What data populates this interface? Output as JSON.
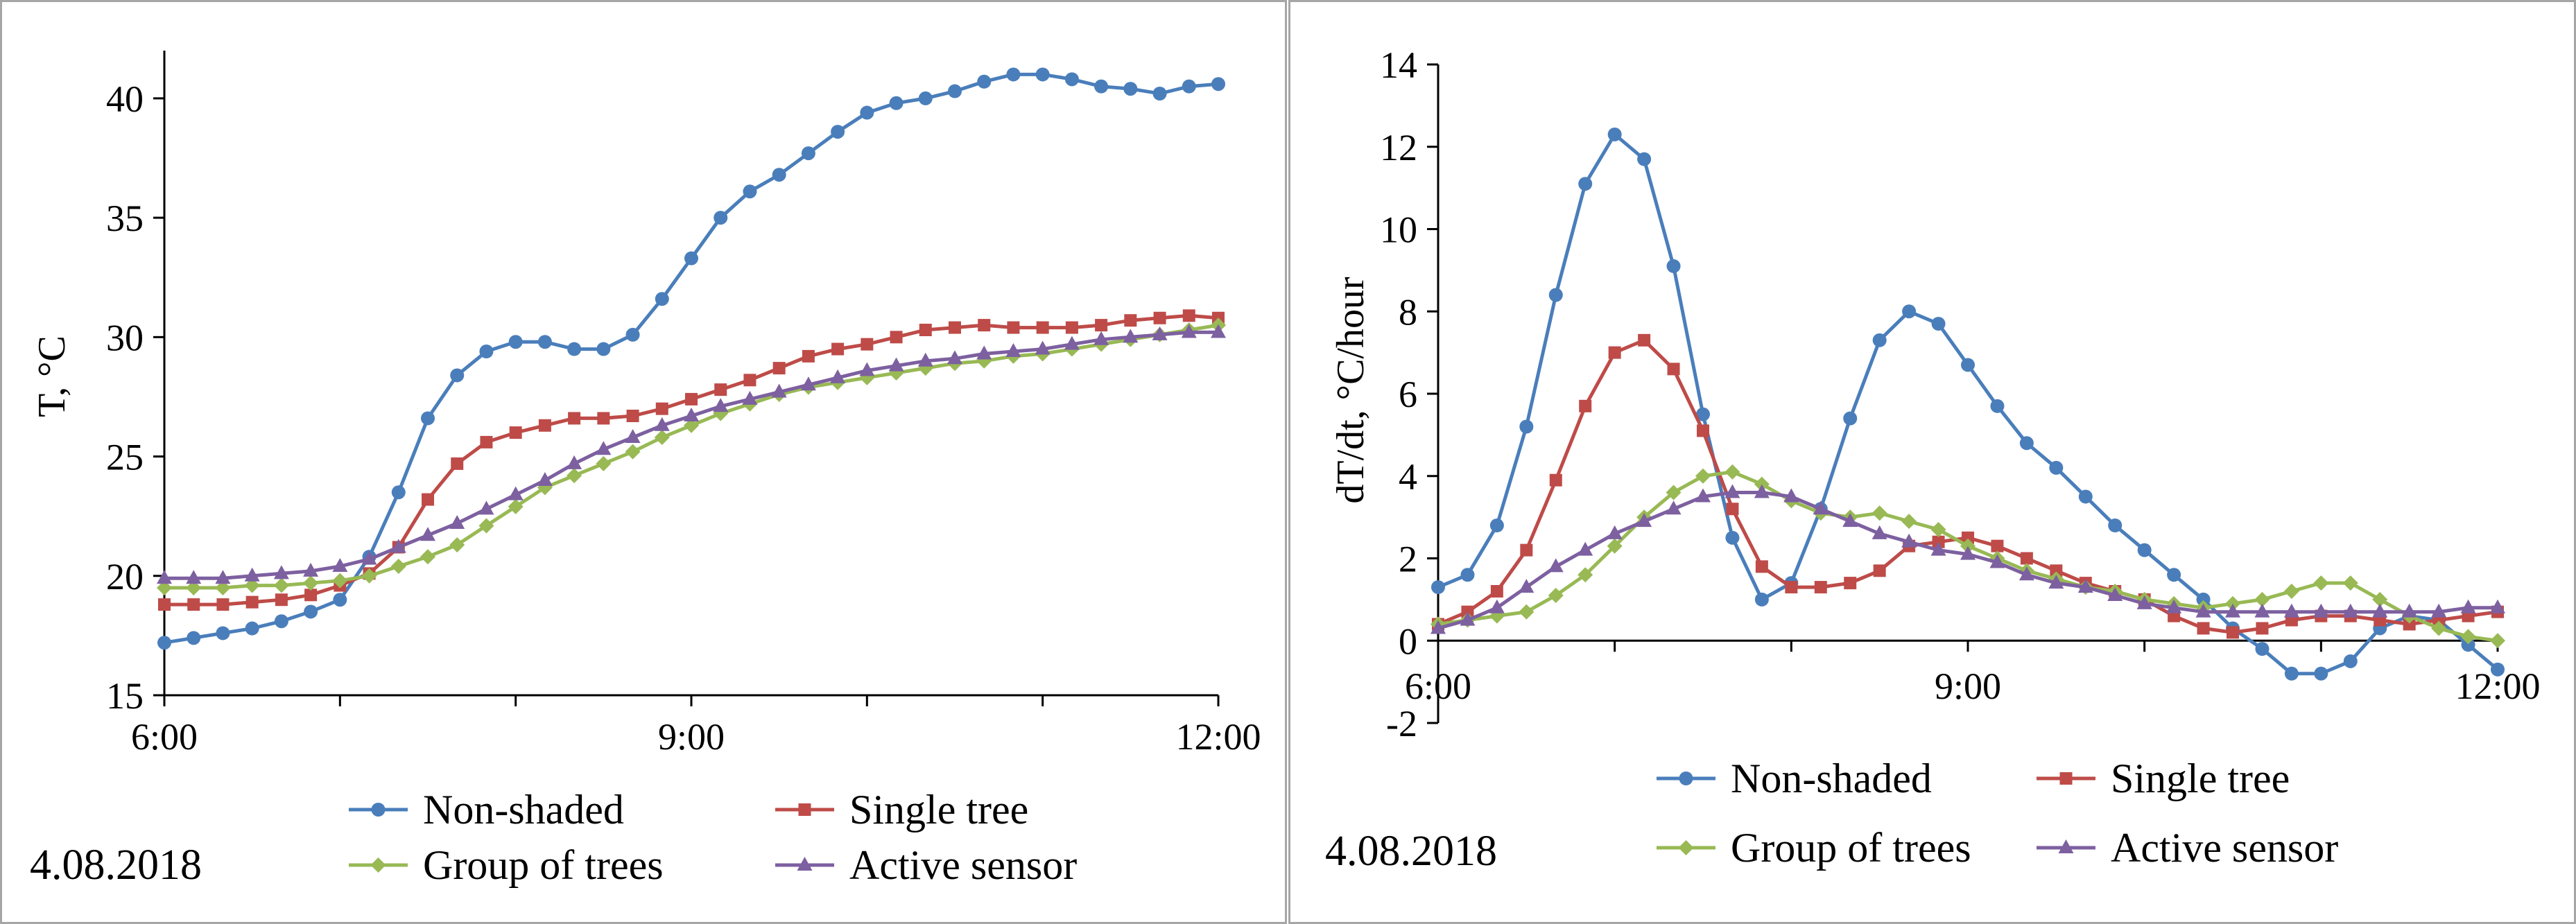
{
  "chart_data": [
    {
      "type": "line",
      "panel": "left",
      "date_label": "4.08.2018",
      "ylabel": "T, °C",
      "xlabel": "",
      "ylim": [
        15,
        42
      ],
      "yticks": [
        15,
        20,
        25,
        30,
        35,
        40
      ],
      "xlim": [
        6,
        12
      ],
      "xticks": [
        {
          "v": 6,
          "label": "6:00"
        },
        {
          "v": 9,
          "label": "9:00"
        },
        {
          "v": 12,
          "label": "12:00"
        }
      ],
      "x_hours": [
        6.0,
        6.1667,
        6.3333,
        6.5,
        6.6667,
        6.8333,
        7.0,
        7.1667,
        7.3333,
        7.5,
        7.6667,
        7.8333,
        8.0,
        8.1667,
        8.3333,
        8.5,
        8.6667,
        8.8333,
        9.0,
        9.1667,
        9.3333,
        9.5,
        9.6667,
        9.8333,
        10.0,
        10.1667,
        10.3333,
        10.5,
        10.6667,
        10.8333,
        11.0,
        11.1667,
        11.3333,
        11.5,
        11.6667,
        11.8333,
        12.0
      ],
      "series": [
        {
          "name": "Non-shaded",
          "color": "#4a7ebb",
          "marker": "circle",
          "values": [
            17.2,
            17.4,
            17.6,
            17.8,
            18.1,
            18.5,
            19.0,
            20.8,
            23.5,
            26.6,
            28.4,
            29.4,
            29.8,
            29.8,
            29.5,
            29.5,
            30.1,
            31.6,
            33.3,
            35.0,
            36.1,
            36.8,
            37.7,
            38.6,
            39.4,
            39.8,
            40.0,
            40.3,
            40.7,
            41.0,
            41.0,
            40.8,
            40.5,
            40.4,
            40.2,
            40.5,
            40.6
          ]
        },
        {
          "name": "Single tree",
          "color": "#be4b48",
          "marker": "square",
          "values": [
            18.8,
            18.8,
            18.8,
            18.9,
            19.0,
            19.2,
            19.6,
            20.1,
            21.2,
            23.2,
            24.7,
            25.6,
            26.0,
            26.3,
            26.6,
            26.6,
            26.7,
            27.0,
            27.4,
            27.8,
            28.2,
            28.7,
            29.2,
            29.5,
            29.7,
            30.0,
            30.3,
            30.4,
            30.5,
            30.4,
            30.4,
            30.4,
            30.5,
            30.7,
            30.8,
            30.9,
            30.8
          ]
        },
        {
          "name": "Group of trees",
          "color": "#98b954",
          "marker": "diamond",
          "values": [
            19.5,
            19.5,
            19.5,
            19.6,
            19.6,
            19.7,
            19.8,
            20.0,
            20.4,
            20.8,
            21.3,
            22.1,
            22.9,
            23.7,
            24.2,
            24.7,
            25.2,
            25.8,
            26.3,
            26.8,
            27.2,
            27.6,
            27.9,
            28.1,
            28.3,
            28.5,
            28.7,
            28.9,
            29.0,
            29.2,
            29.3,
            29.5,
            29.7,
            29.9,
            30.1,
            30.3,
            30.5
          ]
        },
        {
          "name": "Active sensor",
          "color": "#7d60a0",
          "marker": "triangle",
          "values": [
            19.9,
            19.9,
            19.9,
            20.0,
            20.1,
            20.2,
            20.4,
            20.7,
            21.2,
            21.7,
            22.2,
            22.8,
            23.4,
            24.0,
            24.7,
            25.3,
            25.8,
            26.3,
            26.7,
            27.1,
            27.4,
            27.7,
            28.0,
            28.3,
            28.6,
            28.8,
            29.0,
            29.1,
            29.3,
            29.4,
            29.5,
            29.7,
            29.9,
            30.0,
            30.1,
            30.2,
            30.2
          ]
        }
      ]
    },
    {
      "type": "line",
      "panel": "right",
      "date_label": "4.08.2018",
      "ylabel": "dT/dt, °C/hour",
      "xlabel": "",
      "ylim": [
        -2,
        14
      ],
      "yticks": [
        -2,
        0,
        2,
        4,
        6,
        8,
        10,
        12,
        14
      ],
      "xlim": [
        6,
        12
      ],
      "xticks": [
        {
          "v": 6,
          "label": "6:00"
        },
        {
          "v": 9,
          "label": "9:00"
        },
        {
          "v": 12,
          "label": "12:00"
        }
      ],
      "x_hours": [
        6.0,
        6.1667,
        6.3333,
        6.5,
        6.6667,
        6.8333,
        7.0,
        7.1667,
        7.3333,
        7.5,
        7.6667,
        7.8333,
        8.0,
        8.1667,
        8.3333,
        8.5,
        8.6667,
        8.8333,
        9.0,
        9.1667,
        9.3333,
        9.5,
        9.6667,
        9.8333,
        10.0,
        10.1667,
        10.3333,
        10.5,
        10.6667,
        10.8333,
        11.0,
        11.1667,
        11.3333,
        11.5,
        11.6667,
        11.8333,
        12.0
      ],
      "series": [
        {
          "name": "Non-shaded",
          "color": "#4a7ebb",
          "marker": "circle",
          "values": [
            1.3,
            1.6,
            2.8,
            5.2,
            8.4,
            11.1,
            12.3,
            11.7,
            9.1,
            5.5,
            2.5,
            1.0,
            1.4,
            3.2,
            5.4,
            7.3,
            8.0,
            7.7,
            6.7,
            5.7,
            4.8,
            4.2,
            3.5,
            2.8,
            2.2,
            1.6,
            1.0,
            0.3,
            -0.2,
            -0.8,
            -0.8,
            -0.5,
            0.3,
            0.6,
            0.5,
            -0.1,
            -0.7
          ]
        },
        {
          "name": "Single tree",
          "color": "#be4b48",
          "marker": "square",
          "values": [
            0.4,
            0.7,
            1.2,
            2.2,
            3.9,
            5.7,
            7.0,
            7.3,
            6.6,
            5.1,
            3.2,
            1.8,
            1.3,
            1.3,
            1.4,
            1.7,
            2.3,
            2.4,
            2.5,
            2.3,
            2.0,
            1.7,
            1.4,
            1.2,
            1.0,
            0.6,
            0.3,
            0.2,
            0.3,
            0.5,
            0.6,
            0.6,
            0.5,
            0.4,
            0.5,
            0.6,
            0.7
          ]
        },
        {
          "name": "Group of trees",
          "color": "#98b954",
          "marker": "diamond",
          "values": [
            0.4,
            0.5,
            0.6,
            0.7,
            1.1,
            1.6,
            2.3,
            3.0,
            3.6,
            4.0,
            4.1,
            3.8,
            3.4,
            3.1,
            3.0,
            3.1,
            2.9,
            2.7,
            2.3,
            2.0,
            1.7,
            1.5,
            1.3,
            1.2,
            1.0,
            0.9,
            0.8,
            0.9,
            1.0,
            1.2,
            1.4,
            1.4,
            1.0,
            0.6,
            0.3,
            0.1,
            0.0
          ]
        },
        {
          "name": "Active sensor",
          "color": "#7d60a0",
          "marker": "triangle",
          "values": [
            0.3,
            0.5,
            0.8,
            1.3,
            1.8,
            2.2,
            2.6,
            2.9,
            3.2,
            3.5,
            3.6,
            3.6,
            3.5,
            3.2,
            2.9,
            2.6,
            2.4,
            2.2,
            2.1,
            1.9,
            1.6,
            1.4,
            1.3,
            1.1,
            0.9,
            0.8,
            0.7,
            0.7,
            0.7,
            0.7,
            0.7,
            0.7,
            0.7,
            0.7,
            0.7,
            0.8,
            0.8
          ]
        }
      ]
    }
  ]
}
